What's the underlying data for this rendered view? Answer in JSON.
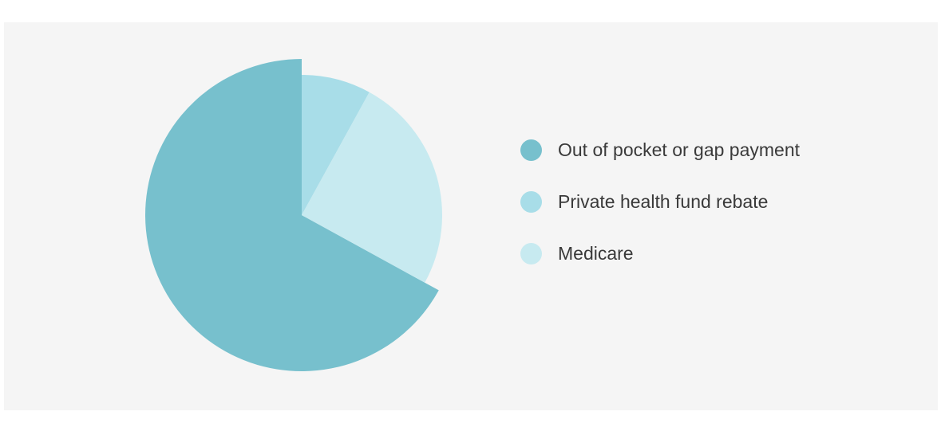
{
  "chart_data": {
    "type": "pie",
    "title": "",
    "legend_position": "right",
    "slices": [
      {
        "label": "Out of pocket or gap payment",
        "value": 67,
        "color": "#77c0cd",
        "exploded": false
      },
      {
        "label": "Private health fund rebate",
        "value": 8,
        "color": "#a8dde8",
        "exploded": true
      },
      {
        "label": "Medicare",
        "value": 25,
        "color": "#c7eaf0",
        "exploded": true
      }
    ]
  }
}
